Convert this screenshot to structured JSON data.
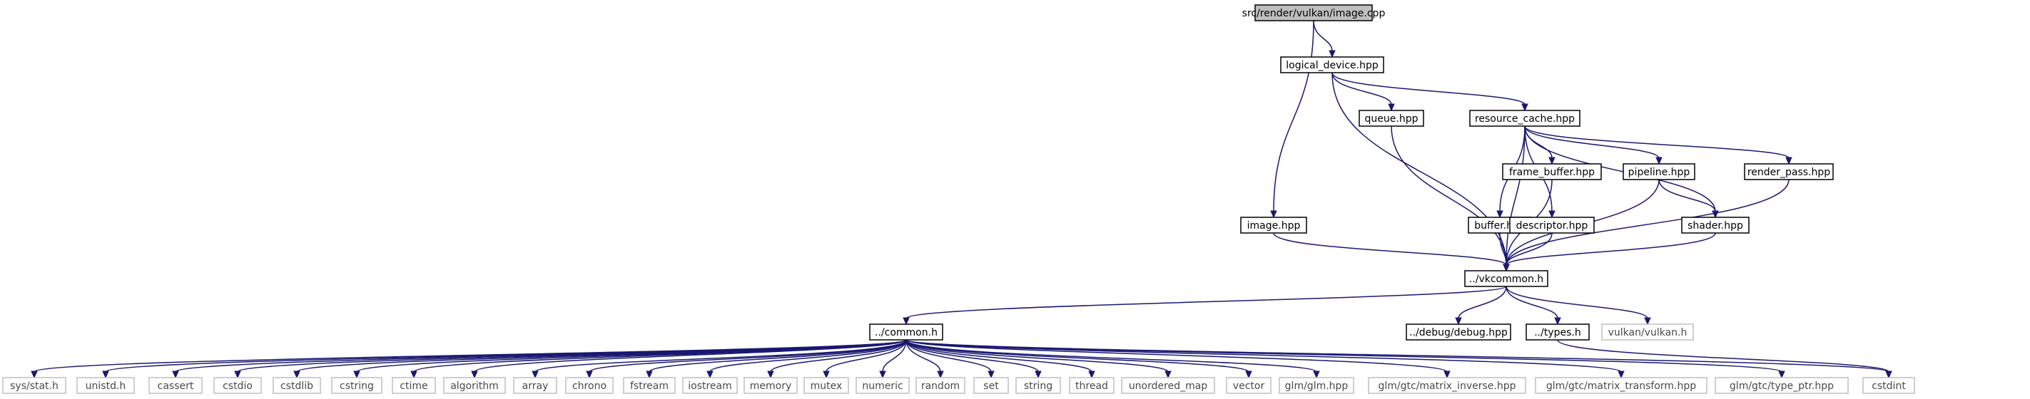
{
  "graph": {
    "nodes": [
      {
        "id": "root",
        "label": "src/render/vulkan/image.cpp",
        "kind": "root"
      },
      {
        "id": "logical_device",
        "label": "logical_device.hpp",
        "kind": "local"
      },
      {
        "id": "queue",
        "label": "queue.hpp",
        "kind": "local"
      },
      {
        "id": "resource_cache",
        "label": "resource_cache.hpp",
        "kind": "local"
      },
      {
        "id": "frame_buffer",
        "label": "frame_buffer.hpp",
        "kind": "local"
      },
      {
        "id": "pipeline",
        "label": "pipeline.hpp",
        "kind": "local"
      },
      {
        "id": "render_pass",
        "label": "render_pass.hpp",
        "kind": "local"
      },
      {
        "id": "image_hpp",
        "label": "image.hpp",
        "kind": "local"
      },
      {
        "id": "buffer",
        "label": "buffer.hpp",
        "kind": "local"
      },
      {
        "id": "descriptor",
        "label": "descriptor.hpp",
        "kind": "local"
      },
      {
        "id": "shader",
        "label": "shader.hpp",
        "kind": "local"
      },
      {
        "id": "vkcommon",
        "label": "../vkcommon.h",
        "kind": "local"
      },
      {
        "id": "common",
        "label": "../common.h",
        "kind": "local"
      },
      {
        "id": "debug",
        "label": "../debug/debug.hpp",
        "kind": "local"
      },
      {
        "id": "types",
        "label": "../types.h",
        "kind": "local"
      },
      {
        "id": "vulkan",
        "label": "vulkan/vulkan.h",
        "kind": "system"
      },
      {
        "id": "sys_stat",
        "label": "sys/stat.h",
        "kind": "system"
      },
      {
        "id": "unistd",
        "label": "unistd.h",
        "kind": "system"
      },
      {
        "id": "cassert",
        "label": "cassert",
        "kind": "system"
      },
      {
        "id": "cstdio",
        "label": "cstdio",
        "kind": "system"
      },
      {
        "id": "cstdlib",
        "label": "cstdlib",
        "kind": "system"
      },
      {
        "id": "cstring",
        "label": "cstring",
        "kind": "system"
      },
      {
        "id": "ctime",
        "label": "ctime",
        "kind": "system"
      },
      {
        "id": "algorithm",
        "label": "algorithm",
        "kind": "system"
      },
      {
        "id": "array",
        "label": "array",
        "kind": "system"
      },
      {
        "id": "chrono",
        "label": "chrono",
        "kind": "system"
      },
      {
        "id": "fstream",
        "label": "fstream",
        "kind": "system"
      },
      {
        "id": "iostream",
        "label": "iostream",
        "kind": "system"
      },
      {
        "id": "memory",
        "label": "memory",
        "kind": "system"
      },
      {
        "id": "mutex",
        "label": "mutex",
        "kind": "system"
      },
      {
        "id": "numeric",
        "label": "numeric",
        "kind": "system"
      },
      {
        "id": "random",
        "label": "random",
        "kind": "system"
      },
      {
        "id": "set",
        "label": "set",
        "kind": "system"
      },
      {
        "id": "string",
        "label": "string",
        "kind": "system"
      },
      {
        "id": "thread",
        "label": "thread",
        "kind": "system"
      },
      {
        "id": "unordered_map",
        "label": "unordered_map",
        "kind": "system"
      },
      {
        "id": "vector",
        "label": "vector",
        "kind": "system"
      },
      {
        "id": "glm_glm",
        "label": "glm/glm.hpp",
        "kind": "system"
      },
      {
        "id": "glm_matrix_inverse",
        "label": "glm/gtc/matrix_inverse.hpp",
        "kind": "system"
      },
      {
        "id": "glm_matrix_transform",
        "label": "glm/gtc/matrix_transform.hpp",
        "kind": "system"
      },
      {
        "id": "glm_type_ptr",
        "label": "glm/gtc/type_ptr.hpp",
        "kind": "system"
      },
      {
        "id": "cstdint",
        "label": "cstdint",
        "kind": "system"
      }
    ],
    "edges": [
      [
        "root",
        "logical_device"
      ],
      [
        "root",
        "image_hpp"
      ],
      [
        "logical_device",
        "queue"
      ],
      [
        "logical_device",
        "resource_cache"
      ],
      [
        "logical_device",
        "vkcommon"
      ],
      [
        "queue",
        "vkcommon"
      ],
      [
        "resource_cache",
        "frame_buffer"
      ],
      [
        "resource_cache",
        "pipeline"
      ],
      [
        "resource_cache",
        "render_pass"
      ],
      [
        "resource_cache",
        "buffer"
      ],
      [
        "resource_cache",
        "descriptor"
      ],
      [
        "resource_cache",
        "shader"
      ],
      [
        "resource_cache",
        "vkcommon"
      ],
      [
        "frame_buffer",
        "vkcommon"
      ],
      [
        "pipeline",
        "vkcommon"
      ],
      [
        "pipeline",
        "shader"
      ],
      [
        "render_pass",
        "vkcommon"
      ],
      [
        "image_hpp",
        "vkcommon"
      ],
      [
        "buffer",
        "vkcommon"
      ],
      [
        "descriptor",
        "vkcommon"
      ],
      [
        "shader",
        "vkcommon"
      ],
      [
        "vkcommon",
        "common"
      ],
      [
        "vkcommon",
        "debug"
      ],
      [
        "vkcommon",
        "types"
      ],
      [
        "vkcommon",
        "vulkan"
      ],
      [
        "types",
        "cstdint"
      ],
      [
        "common",
        "sys_stat"
      ],
      [
        "common",
        "unistd"
      ],
      [
        "common",
        "cassert"
      ],
      [
        "common",
        "cstdio"
      ],
      [
        "common",
        "cstdlib"
      ],
      [
        "common",
        "cstring"
      ],
      [
        "common",
        "ctime"
      ],
      [
        "common",
        "algorithm"
      ],
      [
        "common",
        "array"
      ],
      [
        "common",
        "chrono"
      ],
      [
        "common",
        "fstream"
      ],
      [
        "common",
        "iostream"
      ],
      [
        "common",
        "memory"
      ],
      [
        "common",
        "mutex"
      ],
      [
        "common",
        "numeric"
      ],
      [
        "common",
        "random"
      ],
      [
        "common",
        "set"
      ],
      [
        "common",
        "string"
      ],
      [
        "common",
        "thread"
      ],
      [
        "common",
        "unordered_map"
      ],
      [
        "common",
        "vector"
      ],
      [
        "common",
        "glm_glm"
      ],
      [
        "common",
        "glm_matrix_inverse"
      ],
      [
        "common",
        "glm_matrix_transform"
      ],
      [
        "common",
        "glm_type_ptr"
      ],
      [
        "common",
        "cstdint"
      ]
    ],
    "colors": {
      "edge": "#191970",
      "root_fill": "#bfbfbf",
      "local_stroke": "#000000",
      "system_stroke": "#bfbfbf",
      "system_text": "#4a4a4a",
      "text": "#000000"
    }
  }
}
